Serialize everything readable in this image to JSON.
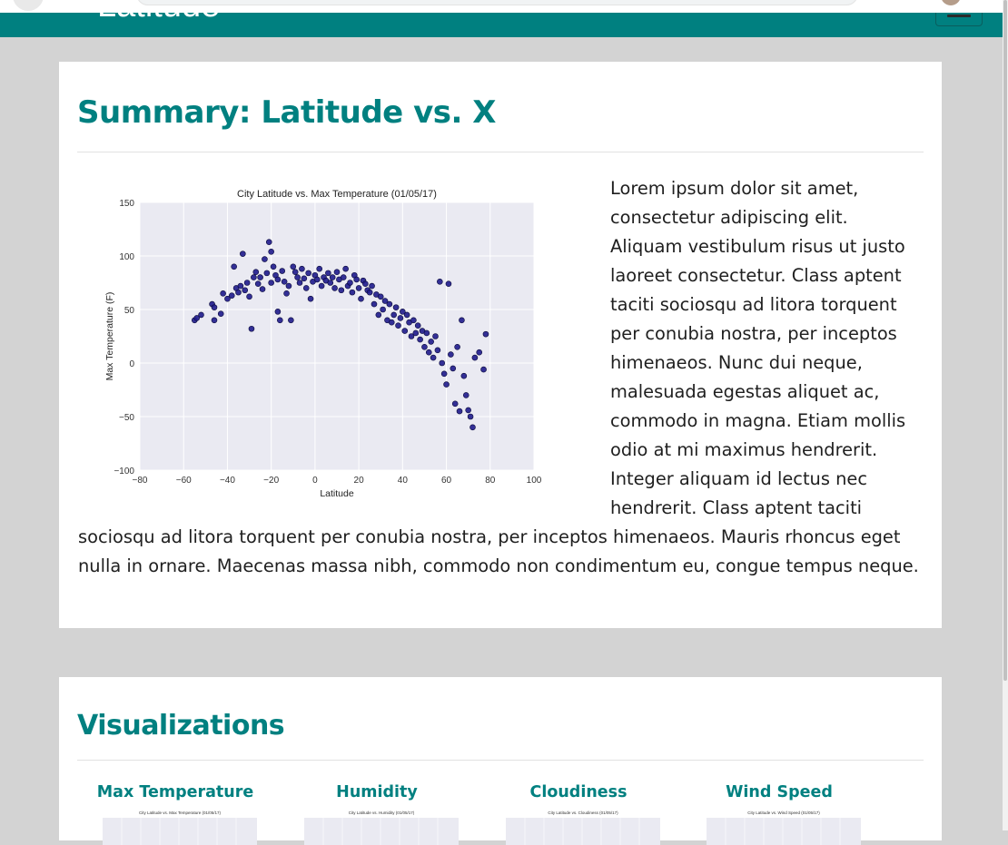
{
  "header": {
    "brand": "Latitude"
  },
  "summary": {
    "title": "Summary: Latitude vs. X",
    "body": "Lorem ipsum dolor sit amet, consectetur adipiscing elit. Aliquam vestibulum risus ut justo laoreet consectetur. Class aptent taciti sociosqu ad litora torquent per conubia nostra, per inceptos himenaeos. Nunc dui neque, malesuada egestas aliquet ac, commodo in magna. Etiam mollis odio at mi maximus hendrerit. Integer aliquam id lectus nec hendrerit. Class aptent taciti sociosqu ad litora torquent per conubia nostra, per inceptos himenaeos. Mauris rhoncus eget nulla in ornare. Maecenas massa nibh, commodo non condimentum eu, congue tempus neque."
  },
  "visualizations": {
    "title": "Visualizations",
    "tiles": [
      {
        "label": "Max Temperature",
        "thumb_title": "City Latitude vs. Max Temperature (01/05/17)"
      },
      {
        "label": "Humidity",
        "thumb_title": "City Latitude vs. Humidity (01/05/17)"
      },
      {
        "label": "Cloudiness",
        "thumb_title": "City Latitude vs. Cloudiness (01/05/17)"
      },
      {
        "label": "Wind Speed",
        "thumb_title": "City Latitude vs. Wind Speed (01/05/17)"
      }
    ]
  },
  "colors": {
    "accent": "#008080",
    "point": "#1f1b8c",
    "plot_bg": "#eaeaf2"
  },
  "chart_data": {
    "type": "scatter",
    "title": "City Latitude vs. Max Temperature (01/05/17)",
    "xlabel": "Latitude",
    "ylabel": "Max Temperature (F)",
    "xlim": [
      -80,
      100
    ],
    "ylim": [
      -100,
      150
    ],
    "xticks": [
      -80,
      -60,
      -40,
      -20,
      0,
      20,
      40,
      60,
      80,
      100
    ],
    "yticks": [
      -100,
      -50,
      0,
      50,
      100,
      150
    ],
    "xtick_labels": [
      "−80",
      "−60",
      "−40",
      "−20",
      "0",
      "20",
      "40",
      "60",
      "80",
      "100"
    ],
    "ytick_labels": [
      "−100",
      "−50",
      "0",
      "50",
      "100",
      "150"
    ],
    "grid": true,
    "points": [
      [
        -55,
        40
      ],
      [
        -54,
        42
      ],
      [
        -52,
        45
      ],
      [
        -47,
        55
      ],
      [
        -46,
        40
      ],
      [
        -46,
        52
      ],
      [
        -43,
        46
      ],
      [
        -42,
        65
      ],
      [
        -40,
        60
      ],
      [
        -38,
        63
      ],
      [
        -37,
        90
      ],
      [
        -36,
        70
      ],
      [
        -35,
        66
      ],
      [
        -34,
        72
      ],
      [
        -33,
        102
      ],
      [
        -32,
        68
      ],
      [
        -31,
        75
      ],
      [
        -30,
        62
      ],
      [
        -29,
        32
      ],
      [
        -28,
        80
      ],
      [
        -27,
        85
      ],
      [
        -26,
        74
      ],
      [
        -25,
        80
      ],
      [
        -24,
        69
      ],
      [
        -23,
        97
      ],
      [
        -22,
        84
      ],
      [
        -21,
        113
      ],
      [
        -20,
        75
      ],
      [
        -20,
        104
      ],
      [
        -19,
        90
      ],
      [
        -18,
        82
      ],
      [
        -17,
        48
      ],
      [
        -17,
        78
      ],
      [
        -16,
        40
      ],
      [
        -15,
        86
      ],
      [
        -14,
        76
      ],
      [
        -13,
        65
      ],
      [
        -12,
        72
      ],
      [
        -11,
        40
      ],
      [
        -10,
        90
      ],
      [
        -9,
        85
      ],
      [
        -8,
        80
      ],
      [
        -7,
        75
      ],
      [
        -6,
        88
      ],
      [
        -5,
        79
      ],
      [
        -4,
        70
      ],
      [
        -3,
        84
      ],
      [
        -2,
        60
      ],
      [
        -1,
        76
      ],
      [
        0,
        82
      ],
      [
        1,
        78
      ],
      [
        2,
        88
      ],
      [
        3,
        72
      ],
      [
        4,
        80
      ],
      [
        5,
        77
      ],
      [
        6,
        84
      ],
      [
        7,
        75
      ],
      [
        8,
        80
      ],
      [
        9,
        70
      ],
      [
        10,
        85
      ],
      [
        11,
        78
      ],
      [
        12,
        68
      ],
      [
        13,
        80
      ],
      [
        14,
        88
      ],
      [
        15,
        72
      ],
      [
        16,
        75
      ],
      [
        17,
        66
      ],
      [
        18,
        82
      ],
      [
        19,
        78
      ],
      [
        20,
        70
      ],
      [
        21,
        60
      ],
      [
        22,
        77
      ],
      [
        23,
        74
      ],
      [
        24,
        68
      ],
      [
        25,
        66
      ],
      [
        26,
        72
      ],
      [
        27,
        55
      ],
      [
        28,
        64
      ],
      [
        29,
        45
      ],
      [
        30,
        62
      ],
      [
        31,
        50
      ],
      [
        32,
        58
      ],
      [
        33,
        40
      ],
      [
        34,
        55
      ],
      [
        35,
        38
      ],
      [
        36,
        45
      ],
      [
        37,
        52
      ],
      [
        38,
        35
      ],
      [
        39,
        42
      ],
      [
        40,
        48
      ],
      [
        41,
        30
      ],
      [
        42,
        45
      ],
      [
        43,
        38
      ],
      [
        44,
        25
      ],
      [
        45,
        40
      ],
      [
        46,
        28
      ],
      [
        47,
        35
      ],
      [
        48,
        22
      ],
      [
        49,
        30
      ],
      [
        50,
        15
      ],
      [
        51,
        28
      ],
      [
        52,
        10
      ],
      [
        53,
        20
      ],
      [
        54,
        5
      ],
      [
        55,
        25
      ],
      [
        56,
        12
      ],
      [
        57,
        76
      ],
      [
        58,
        0
      ],
      [
        59,
        -10
      ],
      [
        60,
        -20
      ],
      [
        61,
        74
      ],
      [
        62,
        8
      ],
      [
        63,
        -5
      ],
      [
        64,
        -38
      ],
      [
        65,
        15
      ],
      [
        66,
        -45
      ],
      [
        67,
        40
      ],
      [
        68,
        -12
      ],
      [
        69,
        -30
      ],
      [
        70,
        -44
      ],
      [
        71,
        -50
      ],
      [
        72,
        -60
      ],
      [
        73,
        5
      ],
      [
        75,
        10
      ],
      [
        78,
        27
      ],
      [
        77,
        -6
      ]
    ]
  }
}
